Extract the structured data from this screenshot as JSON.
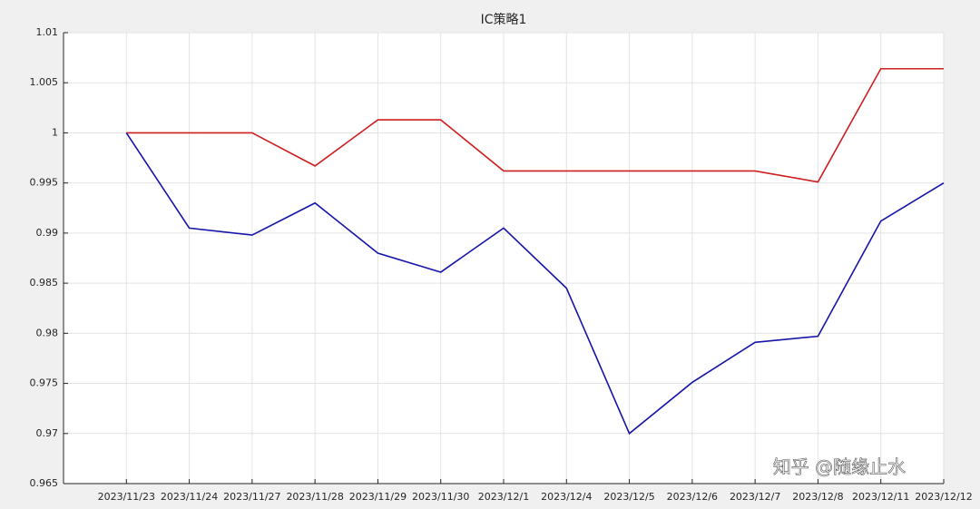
{
  "chart_data": {
    "type": "line",
    "title": "IC策略1",
    "categories": [
      "2023/11/23",
      "2023/11/24",
      "2023/11/27",
      "2023/11/28",
      "2023/11/29",
      "2023/11/30",
      "2023/12/1",
      "2023/12/4",
      "2023/12/5",
      "2023/12/6",
      "2023/12/7",
      "2023/12/8",
      "2023/12/11",
      "2023/12/12"
    ],
    "series": [
      {
        "color": "#cc1f1f",
        "values": [
          1,
          1,
          1,
          0.9967,
          1.0013,
          1.0013,
          0.9962,
          0.9962,
          0.9962,
          0.9962,
          0.9962,
          0.9951,
          1.0064,
          1.0064
        ]
      },
      {
        "color": "#1515a8",
        "values": [
          1,
          0.9905,
          0.9898,
          0.993,
          0.988,
          0.9861,
          0.9905,
          0.9845,
          0.97,
          0.9751,
          0.9791,
          0.9797,
          0.9912,
          0.995
        ]
      }
    ],
    "ylim": [
      0.965,
      1.01
    ],
    "yticks": [
      0.965,
      0.97,
      0.975,
      0.98,
      0.985,
      0.99,
      0.995,
      1,
      1.005,
      1.01
    ],
    "grid": true,
    "watermark": "知乎 @随缘止水"
  }
}
